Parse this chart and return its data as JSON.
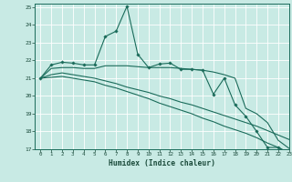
{
  "xlabel": "Humidex (Indice chaleur)",
  "xlim": [
    -0.5,
    23
  ],
  "ylim": [
    17,
    25.2
  ],
  "yticks": [
    17,
    18,
    19,
    20,
    21,
    22,
    23,
    24,
    25
  ],
  "xticks": [
    0,
    1,
    2,
    3,
    4,
    5,
    6,
    7,
    8,
    9,
    10,
    11,
    12,
    13,
    14,
    15,
    16,
    17,
    18,
    19,
    20,
    21,
    22,
    23
  ],
  "background_color": "#c8eae4",
  "grid_color": "#b0d8d0",
  "line_color": "#1a6b5a",
  "series": {
    "wavy": [
      21.0,
      21.75,
      21.9,
      21.85,
      21.75,
      21.75,
      23.35,
      23.65,
      25.05,
      22.35,
      21.6,
      21.8,
      21.85,
      21.5,
      21.5,
      21.45,
      20.1,
      21.0,
      19.5,
      18.85,
      18.0,
      17.1,
      17.1,
      16.75
    ],
    "line1": [
      21.0,
      21.55,
      21.6,
      21.6,
      21.55,
      21.55,
      21.7,
      21.7,
      21.7,
      21.65,
      21.6,
      21.6,
      21.6,
      21.55,
      21.5,
      21.45,
      21.35,
      21.2,
      21.0,
      19.3,
      19.0,
      18.5,
      17.5,
      17.05
    ],
    "line2": [
      21.0,
      21.2,
      21.3,
      21.2,
      21.1,
      21.0,
      20.85,
      20.7,
      20.5,
      20.35,
      20.2,
      20.0,
      19.85,
      19.65,
      19.5,
      19.3,
      19.1,
      18.9,
      18.7,
      18.5,
      18.3,
      18.05,
      17.8,
      17.55
    ],
    "line3": [
      21.0,
      21.05,
      21.1,
      21.0,
      20.9,
      20.8,
      20.6,
      20.45,
      20.25,
      20.05,
      19.85,
      19.6,
      19.4,
      19.2,
      19.0,
      18.75,
      18.55,
      18.3,
      18.1,
      17.9,
      17.65,
      17.35,
      17.1,
      16.8
    ]
  }
}
